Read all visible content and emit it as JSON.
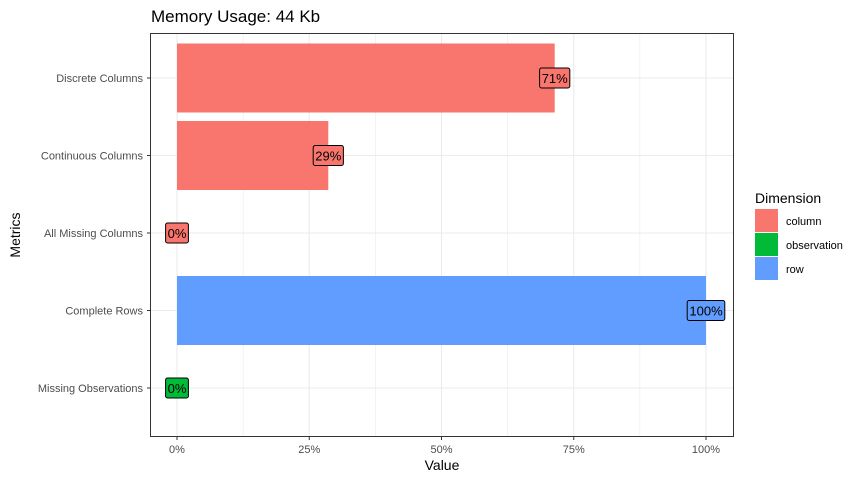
{
  "chart_data": {
    "type": "bar",
    "orientation": "horizontal",
    "title": "Memory Usage: 44 Kb",
    "xlabel": "Value",
    "ylabel": "Metrics",
    "xlim": [
      0,
      1
    ],
    "x_ticks": [
      {
        "value": 0,
        "label": "0%"
      },
      {
        "value": 0.25,
        "label": "25%"
      },
      {
        "value": 0.5,
        "label": "50%"
      },
      {
        "value": 0.75,
        "label": "75%"
      },
      {
        "value": 1,
        "label": "100%"
      }
    ],
    "grid": true,
    "legend": {
      "title": "Dimension",
      "position": "right",
      "entries": [
        {
          "name": "column",
          "color": "#F8766D"
        },
        {
          "name": "observation",
          "color": "#00BA38"
        },
        {
          "name": "row",
          "color": "#619CFF"
        }
      ]
    },
    "categories": [
      "Discrete Columns",
      "Continuous Columns",
      "All Missing Columns",
      "Complete Rows",
      "Missing Observations"
    ],
    "bars": [
      {
        "category": "Discrete Columns",
        "value": 0.714,
        "label": "71%",
        "group": "column"
      },
      {
        "category": "Continuous Columns",
        "value": 0.286,
        "label": "29%",
        "group": "column"
      },
      {
        "category": "All Missing Columns",
        "value": 0,
        "label": "0%",
        "group": "column"
      },
      {
        "category": "Complete Rows",
        "value": 1,
        "label": "100%",
        "group": "row"
      },
      {
        "category": "Missing Observations",
        "value": 0,
        "label": "0%",
        "group": "observation"
      }
    ]
  }
}
